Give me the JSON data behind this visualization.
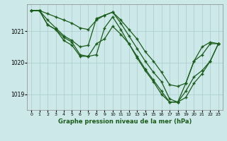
{
  "title": "Graphe pression niveau de la mer (hPa)",
  "background_color": "#cce8e8",
  "grid_color": "#aacccc",
  "line_color": "#1a5c1a",
  "marker_color": "#1a5c1a",
  "xlim": [
    -0.5,
    23.5
  ],
  "ylim": [
    1018.5,
    1021.85
  ],
  "yticks": [
    1019,
    1020,
    1021
  ],
  "xticks": [
    0,
    1,
    2,
    3,
    4,
    5,
    6,
    7,
    8,
    9,
    10,
    11,
    12,
    13,
    14,
    15,
    16,
    17,
    18,
    19,
    20,
    21,
    22,
    23
  ],
  "line1": [
    1021.65,
    1021.65,
    1021.55,
    1021.45,
    1021.35,
    1021.25,
    1021.1,
    1021.05,
    1021.35,
    1021.5,
    1021.6,
    1021.35,
    1021.05,
    1020.75,
    1020.35,
    1020.05,
    1019.7,
    1019.3,
    1019.25,
    1019.35,
    1020.05,
    1020.5,
    1020.65,
    1020.6
  ],
  "line2": [
    1021.65,
    1021.65,
    1021.2,
    1021.05,
    1020.8,
    1020.65,
    1020.25,
    1020.2,
    1020.25,
    1021.1,
    1021.45,
    1021.05,
    1020.6,
    1020.15,
    1019.75,
    1019.4,
    1019.0,
    1018.75,
    1018.75,
    1018.9,
    1019.35,
    1019.65,
    1020.05,
    1020.6
  ],
  "line3": [
    1021.65,
    1021.65,
    1021.2,
    1021.05,
    1020.7,
    1020.55,
    1020.2,
    1020.2,
    1020.6,
    1020.75,
    1021.15,
    1020.9,
    1020.6,
    1020.2,
    1019.8,
    1019.45,
    1019.1,
    1018.75,
    1018.75,
    1019.1,
    1019.55,
    1019.75,
    1020.05,
    1020.6
  ],
  "line4": [
    1021.65,
    1021.65,
    1021.35,
    1021.1,
    1020.85,
    1020.7,
    1020.5,
    1020.55,
    1021.4,
    1021.5,
    1021.6,
    1021.25,
    1020.85,
    1020.45,
    1020.05,
    1019.7,
    1019.4,
    1018.85,
    1018.75,
    1019.35,
    1020.05,
    1020.25,
    1020.6,
    1020.6
  ]
}
